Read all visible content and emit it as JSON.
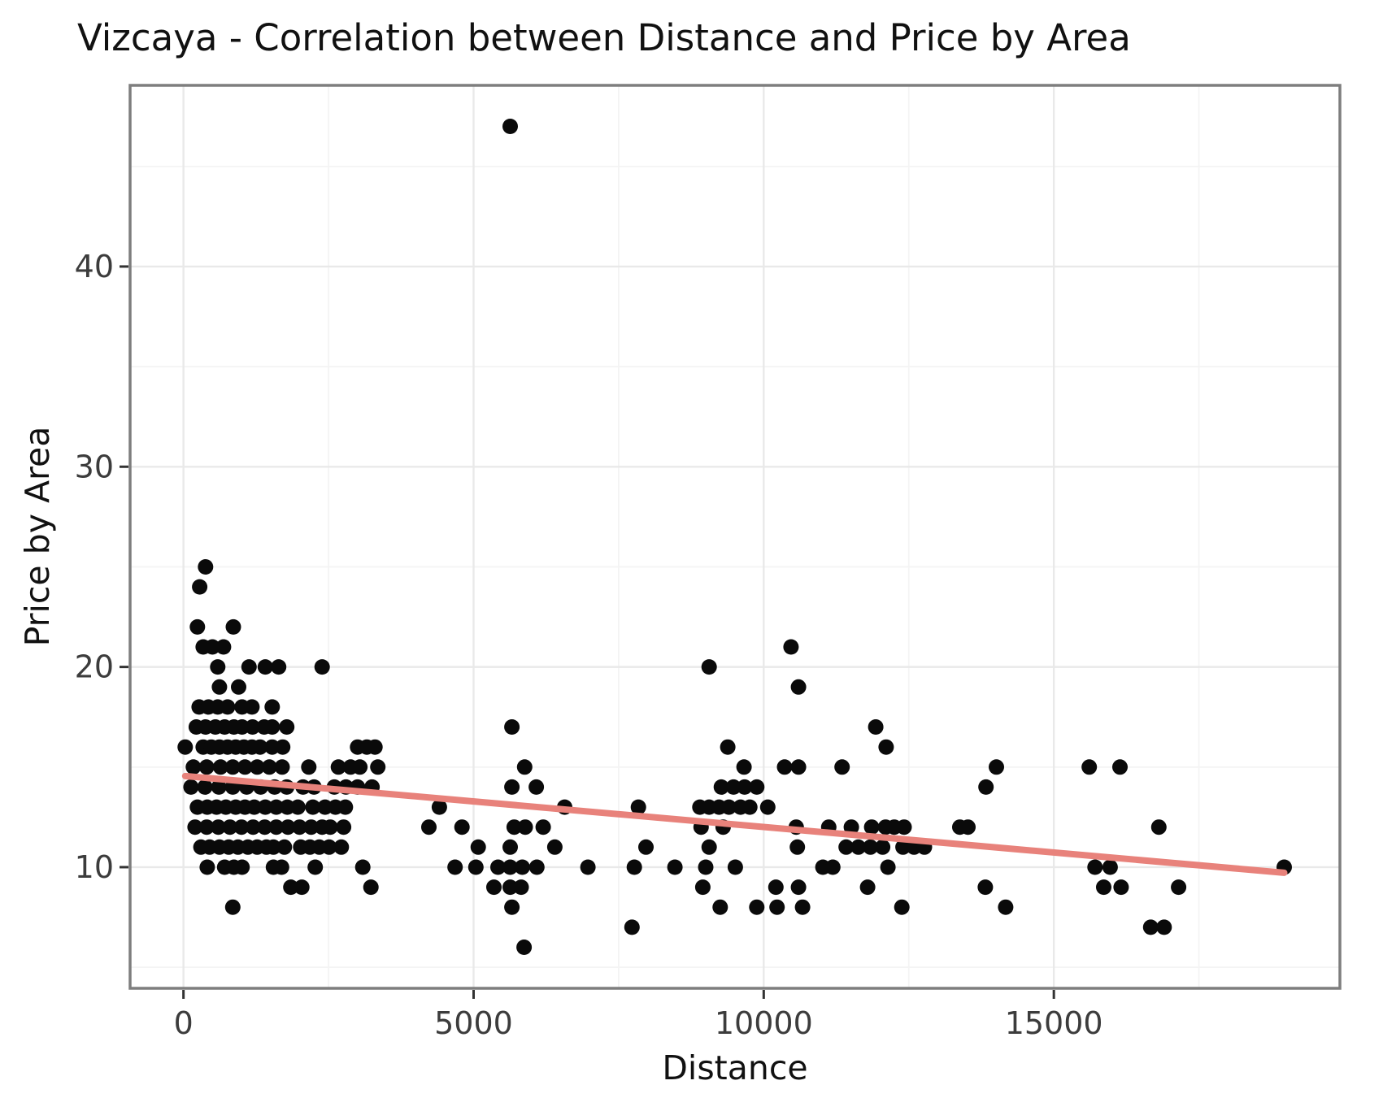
{
  "chart_data": {
    "type": "scatter",
    "title": "Vizcaya - Correlation between Distance and Price by Area",
    "xlabel": "Distance",
    "ylabel": "Price by Area",
    "xlim": [
      -920,
      19930
    ],
    "ylim": [
      3.95,
      49.05
    ],
    "grid": true,
    "legend": "none",
    "x_ticks": [
      {
        "value": 0,
        "label": "0"
      },
      {
        "value": 5000,
        "label": "5000"
      },
      {
        "value": 10000,
        "label": "10000"
      },
      {
        "value": 15000,
        "label": "15000"
      }
    ],
    "y_ticks": [
      {
        "value": 10,
        "label": "10"
      },
      {
        "value": 20,
        "label": "20"
      },
      {
        "value": 30,
        "label": "30"
      },
      {
        "value": 40,
        "label": "40"
      }
    ],
    "x_minor_ticks": [
      2500,
      7500,
      12500,
      17500
    ],
    "y_minor_ticks": [
      5,
      15,
      25,
      35,
      45
    ],
    "marker_radius": 9.5,
    "colors": {
      "point": "#0a0a0a",
      "trend": "#e8827b",
      "grid_major": "#e9e9e9",
      "grid_minor": "#f4f4f4",
      "panel_border": "#7e7e7e",
      "tick": "#333333",
      "tick_label": "#3c3c3c",
      "background": "#ffffff"
    },
    "trend_line": {
      "x1": 30,
      "y1": 14.55,
      "x2": 18970,
      "y2": 9.72
    },
    "points": [
      [
        380,
        25
      ],
      [
        280,
        24
      ],
      [
        240,
        22
      ],
      [
        860,
        22
      ],
      [
        340,
        21
      ],
      [
        500,
        21
      ],
      [
        690,
        21
      ],
      [
        590,
        20
      ],
      [
        1130,
        20
      ],
      [
        1410,
        20
      ],
      [
        1640,
        20
      ],
      [
        2390,
        20
      ],
      [
        620,
        19
      ],
      [
        950,
        19
      ],
      [
        270,
        18
      ],
      [
        430,
        18
      ],
      [
        590,
        18
      ],
      [
        760,
        18
      ],
      [
        1010,
        18
      ],
      [
        1180,
        18
      ],
      [
        1530,
        18
      ],
      [
        220,
        17
      ],
      [
        380,
        17
      ],
      [
        550,
        17
      ],
      [
        710,
        17
      ],
      [
        870,
        17
      ],
      [
        1010,
        17
      ],
      [
        1190,
        17
      ],
      [
        1390,
        17
      ],
      [
        1530,
        17
      ],
      [
        1780,
        17
      ],
      [
        30,
        16
      ],
      [
        340,
        16
      ],
      [
        480,
        16
      ],
      [
        620,
        16
      ],
      [
        760,
        16
      ],
      [
        900,
        16
      ],
      [
        1040,
        16
      ],
      [
        1180,
        16
      ],
      [
        1320,
        16
      ],
      [
        1530,
        16
      ],
      [
        1710,
        16
      ],
      [
        3000,
        16
      ],
      [
        3160,
        16
      ],
      [
        3300,
        16
      ],
      [
        170,
        15
      ],
      [
        400,
        15
      ],
      [
        640,
        15
      ],
      [
        850,
        15
      ],
      [
        1060,
        15
      ],
      [
        1270,
        15
      ],
      [
        1480,
        15
      ],
      [
        1700,
        15
      ],
      [
        2160,
        15
      ],
      [
        2670,
        15
      ],
      [
        2880,
        15
      ],
      [
        3040,
        15
      ],
      [
        3350,
        15
      ],
      [
        130,
        14
      ],
      [
        370,
        14
      ],
      [
        610,
        14
      ],
      [
        850,
        14
      ],
      [
        1090,
        14
      ],
      [
        1330,
        14
      ],
      [
        1570,
        14
      ],
      [
        1780,
        14
      ],
      [
        2060,
        14
      ],
      [
        2250,
        14
      ],
      [
        2600,
        14
      ],
      [
        2800,
        14
      ],
      [
        3000,
        14
      ],
      [
        3250,
        14
      ],
      [
        240,
        13
      ],
      [
        410,
        13
      ],
      [
        570,
        13
      ],
      [
        730,
        13
      ],
      [
        900,
        13
      ],
      [
        1060,
        13
      ],
      [
        1220,
        13
      ],
      [
        1410,
        13
      ],
      [
        1600,
        13
      ],
      [
        1790,
        13
      ],
      [
        1970,
        13
      ],
      [
        2230,
        13
      ],
      [
        2440,
        13
      ],
      [
        2620,
        13
      ],
      [
        2790,
        13
      ],
      [
        200,
        12
      ],
      [
        400,
        12
      ],
      [
        600,
        12
      ],
      [
        800,
        12
      ],
      [
        1000,
        12
      ],
      [
        1200,
        12
      ],
      [
        1400,
        12
      ],
      [
        1600,
        12
      ],
      [
        1800,
        12
      ],
      [
        2000,
        12
      ],
      [
        2200,
        12
      ],
      [
        2390,
        12
      ],
      [
        2530,
        12
      ],
      [
        2760,
        12
      ],
      [
        300,
        11
      ],
      [
        450,
        11
      ],
      [
        620,
        11
      ],
      [
        780,
        11
      ],
      [
        940,
        11
      ],
      [
        1110,
        11
      ],
      [
        1270,
        11
      ],
      [
        1430,
        11
      ],
      [
        1550,
        11
      ],
      [
        1740,
        11
      ],
      [
        2020,
        11
      ],
      [
        2180,
        11
      ],
      [
        2340,
        11
      ],
      [
        2510,
        11
      ],
      [
        2720,
        11
      ],
      [
        410,
        10
      ],
      [
        710,
        10
      ],
      [
        870,
        10
      ],
      [
        1010,
        10
      ],
      [
        1550,
        10
      ],
      [
        1690,
        10
      ],
      [
        2270,
        10
      ],
      [
        3090,
        10
      ],
      [
        1850,
        9
      ],
      [
        2040,
        9
      ],
      [
        3230,
        9
      ],
      [
        850,
        8
      ],
      [
        5630,
        47
      ],
      [
        5660,
        17
      ],
      [
        5880,
        15
      ],
      [
        5660,
        14
      ],
      [
        6080,
        14
      ],
      [
        4410,
        13
      ],
      [
        6570,
        13
      ],
      [
        7840,
        13
      ],
      [
        4230,
        12
      ],
      [
        4800,
        12
      ],
      [
        5700,
        12
      ],
      [
        5890,
        12
      ],
      [
        6200,
        12
      ],
      [
        5080,
        11
      ],
      [
        5630,
        11
      ],
      [
        6400,
        11
      ],
      [
        7970,
        11
      ],
      [
        4680,
        10
      ],
      [
        5040,
        10
      ],
      [
        5420,
        10
      ],
      [
        5630,
        10
      ],
      [
        5840,
        10
      ],
      [
        6090,
        10
      ],
      [
        6970,
        10
      ],
      [
        7770,
        10
      ],
      [
        8470,
        10
      ],
      [
        5350,
        9
      ],
      [
        5630,
        9
      ],
      [
        5820,
        9
      ],
      [
        5660,
        8
      ],
      [
        7730,
        7
      ],
      [
        5870,
        6
      ],
      [
        10470,
        21
      ],
      [
        9060,
        20
      ],
      [
        10600,
        19
      ],
      [
        11930,
        17
      ],
      [
        9380,
        16
      ],
      [
        12110,
        16
      ],
      [
        9660,
        15
      ],
      [
        10360,
        15
      ],
      [
        10600,
        15
      ],
      [
        11350,
        15
      ],
      [
        14010,
        15
      ],
      [
        9270,
        14
      ],
      [
        9480,
        14
      ],
      [
        9670,
        14
      ],
      [
        9880,
        14
      ],
      [
        13830,
        14
      ],
      [
        8900,
        13
      ],
      [
        9060,
        13
      ],
      [
        9230,
        13
      ],
      [
        9400,
        13
      ],
      [
        9600,
        13
      ],
      [
        9760,
        13
      ],
      [
        10070,
        13
      ],
      [
        8920,
        12
      ],
      [
        9300,
        12
      ],
      [
        10560,
        12
      ],
      [
        11120,
        12
      ],
      [
        11510,
        12
      ],
      [
        11860,
        12
      ],
      [
        12100,
        12
      ],
      [
        12250,
        12
      ],
      [
        12420,
        12
      ],
      [
        13380,
        12
      ],
      [
        13520,
        12
      ],
      [
        9060,
        11
      ],
      [
        10580,
        11
      ],
      [
        11420,
        11
      ],
      [
        11630,
        11
      ],
      [
        11840,
        11
      ],
      [
        12050,
        11
      ],
      [
        12400,
        11
      ],
      [
        12590,
        11
      ],
      [
        12770,
        11
      ],
      [
        9000,
        10
      ],
      [
        9510,
        10
      ],
      [
        11020,
        10
      ],
      [
        11190,
        10
      ],
      [
        12140,
        10
      ],
      [
        8950,
        9
      ],
      [
        10210,
        9
      ],
      [
        10600,
        9
      ],
      [
        11790,
        9
      ],
      [
        13820,
        9
      ],
      [
        9250,
        8
      ],
      [
        9880,
        8
      ],
      [
        10230,
        8
      ],
      [
        10670,
        8
      ],
      [
        12380,
        8
      ],
      [
        14170,
        8
      ],
      [
        15610,
        15
      ],
      [
        16140,
        15
      ],
      [
        16810,
        12
      ],
      [
        15710,
        10
      ],
      [
        15970,
        10
      ],
      [
        18970,
        10
      ],
      [
        15860,
        9
      ],
      [
        16160,
        9
      ],
      [
        17150,
        9
      ],
      [
        16670,
        7
      ],
      [
        16900,
        7
      ]
    ]
  }
}
